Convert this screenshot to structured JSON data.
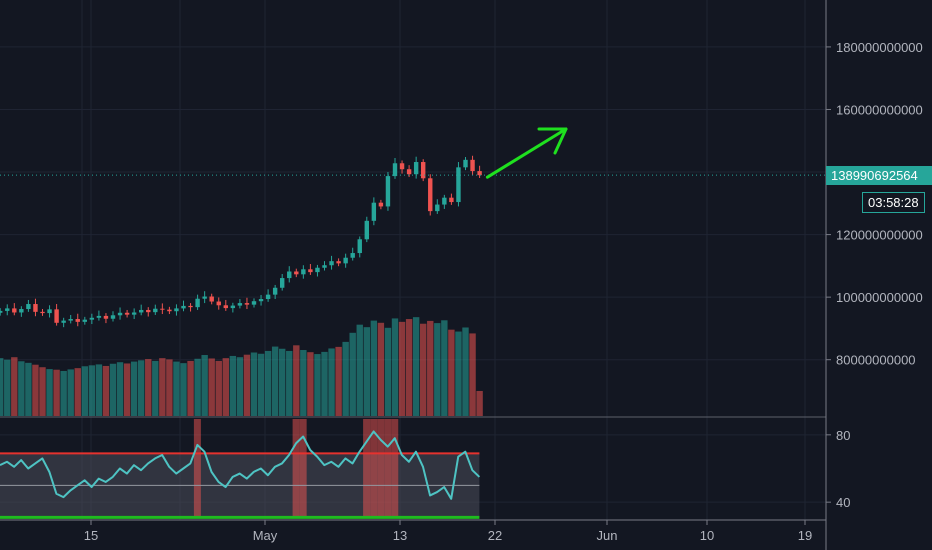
{
  "chart_data": [
    {
      "type": "candlestick",
      "title": "",
      "x_ticks": [
        "15",
        "May",
        "13",
        "22",
        "Jun",
        "10",
        "19"
      ],
      "y_ticks": [
        {
          "label": "180000000000",
          "value": 180000000000
        },
        {
          "label": "160000000000",
          "value": 160000000000
        },
        {
          "label": "120000000000",
          "value": 120000000000
        },
        {
          "label": "100000000000",
          "value": 100000000000
        },
        {
          "label": "80000000000",
          "value": 80000000000
        }
      ],
      "ylim": [
        62000000000,
        195000000000
      ],
      "last_price": {
        "label": "138990692564",
        "value": 138990692564,
        "color": "#26a69a"
      },
      "countdown": "03:58:28",
      "trend_arrow_color": "#1fe01f",
      "up_color": "#26a69a",
      "down_color": "#ef5350",
      "series_close": [
        95.6,
        96.4,
        95.1,
        96.2,
        97.8,
        95.3,
        94.9,
        96.1,
        91.8,
        92.5,
        93.0,
        92.1,
        92.8,
        93.4,
        94.0,
        93.1,
        94.2,
        95.0,
        94.4,
        95.1,
        95.9,
        95.2,
        96.3,
        96.0,
        95.5,
        96.4,
        97.2,
        96.8,
        99.5,
        100.2,
        98.6,
        97.4,
        96.5,
        97.3,
        98.1,
        97.6,
        98.7,
        99.4,
        100.8,
        103.0,
        106.1,
        108.2,
        107.3,
        108.9,
        108.0,
        109.4,
        110.2,
        111.5,
        110.8,
        112.6,
        114.1,
        118.5,
        124.4,
        130.2,
        129.0,
        138.7,
        142.8,
        140.9,
        139.3,
        143.2,
        138.0,
        127.5,
        129.6,
        131.8,
        130.4,
        141.5,
        143.9,
        140.3,
        138.99
      ],
      "volume_level": [
        80.5,
        80.0,
        80.8,
        79.5,
        79.0,
        78.4,
        77.6,
        77.0,
        76.8,
        76.4,
        76.9,
        77.3,
        77.9,
        78.2,
        78.5,
        78.0,
        78.7,
        79.2,
        78.8,
        79.4,
        79.8,
        80.2,
        79.6,
        80.5,
        80.1,
        79.4,
        78.9,
        79.6,
        80.3,
        81.5,
        80.4,
        79.6,
        80.5,
        81.2,
        80.8,
        81.6,
        82.3,
        81.9,
        82.8,
        84.2,
        83.5,
        82.8,
        84.6,
        83.1,
        82.4,
        81.8,
        82.5,
        83.6,
        84.1,
        85.7,
        88.6,
        91.2,
        90.4,
        92.5,
        91.8,
        90.2,
        93.2,
        92.1,
        93.0,
        93.6,
        91.5,
        92.4,
        91.7,
        92.6,
        89.6,
        89.0,
        90.3,
        88.4,
        70.0
      ],
      "oscillator": {
        "ylim": [
          30,
          90
        ],
        "y_ticks": [
          80,
          40
        ],
        "upper_band": 69,
        "lower_band": 31,
        "mid_band": 50,
        "band_colors": {
          "upper": "#e5322e",
          "lower": "#1fbb1f",
          "fill": "#4a4d59"
        },
        "line_color": "#4ec3c3",
        "values": [
          62,
          64,
          61,
          65,
          60,
          63,
          66,
          58,
          45,
          43,
          47,
          50,
          53,
          49,
          54,
          52,
          55,
          60,
          57,
          62,
          59,
          63,
          66,
          68,
          61,
          57,
          60,
          63,
          74,
          70,
          58,
          52,
          49,
          55,
          57,
          54,
          58,
          60,
          56,
          61,
          63,
          68,
          75,
          79,
          71,
          67,
          62,
          64,
          61,
          66,
          63,
          70,
          76,
          82,
          77,
          73,
          78,
          68,
          64,
          70,
          61,
          44,
          46,
          49,
          42,
          67,
          70,
          59,
          55
        ]
      }
    }
  ]
}
